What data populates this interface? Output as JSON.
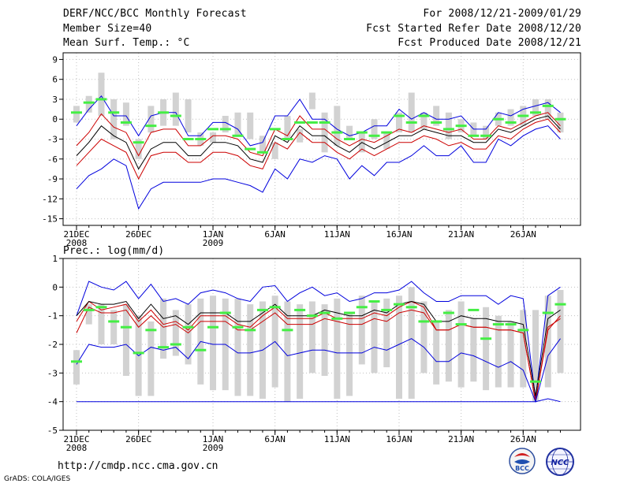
{
  "header": {
    "title": "DERF/NCC/BCC Monthly Forecast",
    "member_size": "Member Size=40",
    "variable": "Mean Surf. Temp.: °C",
    "period": "For 2008/12/21-2009/01/29",
    "fcst_started": "Fcst Started Refer Date 2008/12/20",
    "fcst_produced": "Fcst Produced Date 2008/12/21"
  },
  "footer": {
    "url": "http://cmdp.ncc.cma.gov.cn",
    "grads": "GrADS: COLA/IGES",
    "logo_bcc": "BCC",
    "logo_ncc": "NCC"
  },
  "colors": {
    "frame": "#000000",
    "grid": "#c0c0c0",
    "box": "#d2d2d2",
    "obs": "#44ee44",
    "outer": "#0000dd",
    "inner": "#cc0000",
    "mean": "#000000"
  },
  "chart_data": [
    {
      "type": "line",
      "name": "temperature",
      "title": "",
      "ylabel": "Mean Surf. Temp.: °C",
      "ylim": [
        -16,
        10
      ],
      "yticks": [
        9,
        6,
        3,
        0,
        -3,
        -6,
        -9,
        -12,
        -15
      ],
      "ytick_labels": [
        "9",
        "6",
        "3",
        "0",
        "-3",
        "-6",
        "-9",
        "-12",
        "-15"
      ],
      "xticks": [
        {
          "day": 1,
          "label": "21DEC",
          "sub": "2008"
        },
        {
          "day": 6,
          "label": "26DEC",
          "sub": ""
        },
        {
          "day": 12,
          "label": "1JAN",
          "sub": "2009"
        },
        {
          "day": 17,
          "label": "6JAN",
          "sub": ""
        },
        {
          "day": 22,
          "label": "11JAN",
          "sub": ""
        },
        {
          "day": 27,
          "label": "16JAN",
          "sub": ""
        },
        {
          "day": 32,
          "label": "21JAN",
          "sub": ""
        },
        {
          "day": 37,
          "label": "26JAN",
          "sub": ""
        }
      ],
      "x": [
        1,
        2,
        3,
        4,
        5,
        6,
        7,
        8,
        9,
        10,
        11,
        12,
        13,
        14,
        15,
        16,
        17,
        18,
        19,
        20,
        21,
        22,
        23,
        24,
        25,
        26,
        27,
        28,
        29,
        30,
        31,
        32,
        33,
        34,
        35,
        36,
        37,
        38,
        39,
        40
      ],
      "series": [
        {
          "name": "max",
          "role": "outer",
          "values": [
            -1,
            1.5,
            3.5,
            0.5,
            0.5,
            -2.5,
            0.5,
            1,
            1,
            -2.5,
            -2.5,
            -0.5,
            -0.5,
            -1.5,
            -4,
            -3.5,
            0.5,
            0.5,
            3,
            0,
            0,
            -1.5,
            -2.5,
            -2,
            -1,
            -1,
            1.5,
            0,
            1,
            0,
            0,
            0.5,
            -1.5,
            -1.5,
            1,
            0.5,
            1.5,
            2,
            2.5,
            1
          ]
        },
        {
          "name": "upper",
          "role": "inner",
          "values": [
            -4,
            -2,
            0.8,
            -1.2,
            -2,
            -5.5,
            -2,
            -1.5,
            -1.5,
            -4,
            -4,
            -2.5,
            -2.5,
            -3,
            -5,
            -5.5,
            -1.5,
            -2.5,
            0.5,
            -1.5,
            -1.5,
            -3,
            -4,
            -3,
            -3.5,
            -2.5,
            -1.5,
            -2,
            -1,
            -1.5,
            -2,
            -1.5,
            -3,
            -3,
            -1,
            -1.5,
            -0.5,
            0.5,
            1,
            -1
          ]
        },
        {
          "name": "mean",
          "role": "mean",
          "values": [
            -5.5,
            -3.5,
            -1,
            -2.5,
            -3.5,
            -7.5,
            -4.5,
            -3.5,
            -3.5,
            -5.5,
            -5.5,
            -3.5,
            -3.5,
            -4,
            -6,
            -6.5,
            -2.5,
            -3.5,
            -1,
            -2.5,
            -2.5,
            -4,
            -5,
            -3.5,
            -4.5,
            -3.5,
            -2.5,
            -2.5,
            -1.5,
            -2,
            -2.5,
            -2.5,
            -3.5,
            -3.5,
            -1.5,
            -2,
            -1,
            0,
            0.5,
            -1.5
          ]
        },
        {
          "name": "lower",
          "role": "inner",
          "values": [
            -7,
            -5,
            -3,
            -4,
            -5,
            -9,
            -5.5,
            -5,
            -5,
            -6.5,
            -6.5,
            -5,
            -5,
            -5.5,
            -7,
            -7.5,
            -3.5,
            -4.5,
            -2,
            -3.5,
            -3.5,
            -5,
            -6,
            -4.5,
            -5.5,
            -4.5,
            -3.5,
            -3.5,
            -2.5,
            -3,
            -4,
            -3.5,
            -4.5,
            -4.5,
            -2.5,
            -3,
            -1.5,
            -0.5,
            0,
            -2
          ]
        },
        {
          "name": "min",
          "role": "outer",
          "values": [
            -10.5,
            -8.5,
            -7.5,
            -6,
            -7,
            -13.5,
            -10.5,
            -9.5,
            -9.5,
            -9.5,
            -9.5,
            -9,
            -9,
            -9.5,
            -10,
            -11,
            -7.5,
            -9,
            -6,
            -6.5,
            -5.5,
            -6,
            -9,
            -7,
            -8.5,
            -6.5,
            -6.5,
            -5.5,
            -4,
            -5.5,
            -5.5,
            -4,
            -6.5,
            -6.5,
            -3,
            -4,
            -2.5,
            -1.5,
            -1,
            -3
          ]
        }
      ],
      "boxes": [
        [
          -0.5,
          2
        ],
        [
          1,
          3.5
        ],
        [
          0.5,
          7
        ],
        [
          -3,
          3
        ],
        [
          -1,
          2.5
        ],
        [
          -6,
          -3
        ],
        [
          -2,
          2
        ],
        [
          -1,
          3
        ],
        [
          -1,
          4
        ],
        [
          -2,
          3
        ],
        [
          -4,
          -2
        ],
        [
          -3.5,
          -2
        ],
        [
          -2,
          0.5
        ],
        [
          -2.5,
          1
        ],
        [
          -3,
          1
        ],
        [
          -5,
          -2.5
        ],
        [
          -6,
          -3.5
        ],
        [
          -3,
          0.5
        ],
        [
          -3.5,
          -1.5
        ],
        [
          1.5,
          4
        ],
        [
          -5,
          1
        ],
        [
          -4,
          2
        ],
        [
          -3,
          -1
        ],
        [
          -5,
          -2
        ],
        [
          -3,
          0
        ],
        [
          -4.5,
          -2
        ],
        [
          -2,
          1
        ],
        [
          -2,
          4
        ],
        [
          -1.5,
          1
        ],
        [
          -1,
          2
        ],
        [
          -3,
          1
        ],
        [
          -2,
          0
        ],
        [
          -2.5,
          -0.5
        ],
        [
          -3,
          -1
        ],
        [
          -1,
          1
        ],
        [
          -1,
          1.5
        ],
        [
          -1,
          2
        ],
        [
          0.5,
          3
        ],
        [
          0,
          3
        ],
        [
          -2,
          1
        ]
      ],
      "obs": [
        1,
        2.5,
        3,
        1,
        -0.5,
        -3.5,
        -1,
        1,
        0.5,
        -3,
        -3,
        -1.5,
        -1.5,
        -2.5,
        -4.5,
        -5,
        -1.5,
        -3,
        -0.5,
        -0.5,
        -0.5,
        -2,
        -3,
        -2,
        -2.5,
        -2,
        0.5,
        -0.5,
        0.5,
        -0.5,
        -1.5,
        -1,
        -2.5,
        -2.5,
        0,
        -0.5,
        0.5,
        1,
        2,
        0
      ]
    },
    {
      "type": "line",
      "name": "precipitation",
      "title": "",
      "ylabel": "Prec.: log(mm/d)",
      "ylim": [
        -5,
        1
      ],
      "yticks": [
        1,
        0,
        -1,
        -2,
        -3,
        -4,
        -5
      ],
      "ytick_labels": [
        "1",
        "0",
        "-1",
        "-2",
        "-3",
        "-4",
        "-5"
      ],
      "xticks": [
        {
          "day": 1,
          "label": "21DEC",
          "sub": "2008"
        },
        {
          "day": 6,
          "label": "26DEC",
          "sub": ""
        },
        {
          "day": 12,
          "label": "1JAN",
          "sub": "2009"
        },
        {
          "day": 17,
          "label": "6JAN",
          "sub": ""
        },
        {
          "day": 22,
          "label": "11JAN",
          "sub": ""
        },
        {
          "day": 27,
          "label": "16JAN",
          "sub": ""
        },
        {
          "day": 32,
          "label": "21JAN",
          "sub": ""
        },
        {
          "day": 37,
          "label": "26JAN",
          "sub": ""
        }
      ],
      "x": [
        1,
        2,
        3,
        4,
        5,
        6,
        7,
        8,
        9,
        10,
        11,
        12,
        13,
        14,
        15,
        16,
        17,
        18,
        19,
        20,
        21,
        22,
        23,
        24,
        25,
        26,
        27,
        28,
        29,
        30,
        31,
        32,
        33,
        34,
        35,
        36,
        37,
        38,
        39,
        40
      ],
      "series": [
        {
          "name": "max",
          "role": "outer",
          "values": [
            -1,
            0.2,
            0,
            -0.1,
            0.2,
            -0.4,
            0.1,
            -0.5,
            -0.4,
            -0.6,
            -0.2,
            -0.1,
            -0.2,
            -0.4,
            -0.5,
            0,
            0.05,
            -0.5,
            -0.2,
            0,
            -0.3,
            -0.2,
            -0.5,
            -0.4,
            -0.2,
            -0.2,
            -0.1,
            0.2,
            -0.2,
            -0.5,
            -0.5,
            -0.3,
            -0.3,
            -0.3,
            -0.6,
            -0.3,
            -0.4,
            -3.9,
            -0.3,
            0
          ]
        },
        {
          "name": "upper",
          "role": "inner",
          "values": [
            -1.2,
            -0.5,
            -0.8,
            -0.7,
            -0.6,
            -1.2,
            -0.8,
            -1.3,
            -1.2,
            -1.5,
            -1,
            -1,
            -1,
            -1.3,
            -1.4,
            -1,
            -0.7,
            -1.1,
            -1.1,
            -1.1,
            -0.9,
            -1.1,
            -1.1,
            -1.1,
            -0.9,
            -1,
            -0.7,
            -0.5,
            -0.7,
            -1.5,
            -1.5,
            -1.3,
            -1.4,
            -1.4,
            -1.5,
            -1.5,
            -1.6,
            -4,
            -1.5,
            -1
          ]
        },
        {
          "name": "mean",
          "role": "mean",
          "values": [
            -1,
            -0.5,
            -0.6,
            -0.6,
            -0.5,
            -1.1,
            -0.6,
            -1.1,
            -1,
            -1.3,
            -0.9,
            -0.9,
            -0.9,
            -1.2,
            -1.2,
            -0.9,
            -0.6,
            -1,
            -1,
            -1,
            -0.8,
            -0.9,
            -1,
            -1,
            -0.8,
            -0.9,
            -0.6,
            -0.5,
            -0.6,
            -1.2,
            -1.2,
            -1,
            -1.1,
            -1.1,
            -1.2,
            -1.2,
            -1.3,
            -3.8,
            -1.1,
            -0.8
          ]
        },
        {
          "name": "lower",
          "role": "inner",
          "values": [
            -1.6,
            -0.7,
            -0.9,
            -0.9,
            -0.8,
            -1.4,
            -1,
            -1.4,
            -1.3,
            -1.6,
            -1.2,
            -1.2,
            -1.2,
            -1.5,
            -1.5,
            -1.2,
            -0.9,
            -1.3,
            -1.3,
            -1.3,
            -1.1,
            -1.2,
            -1.3,
            -1.3,
            -1.1,
            -1.2,
            -0.9,
            -0.8,
            -0.9,
            -1.5,
            -1.5,
            -1.3,
            -1.4,
            -1.4,
            -1.5,
            -1.5,
            -1.6,
            -4,
            -1.4,
            -1.1
          ]
        },
        {
          "name": "min",
          "role": "outer",
          "values": [
            -2.7,
            -2,
            -2.1,
            -2.1,
            -2,
            -2.4,
            -2.1,
            -2.2,
            -2.1,
            -2.5,
            -1.9,
            -2,
            -2,
            -2.3,
            -2.3,
            -2.2,
            -1.9,
            -2.4,
            -2.3,
            -2.2,
            -2.2,
            -2.3,
            -2.3,
            -2.3,
            -2.1,
            -2.2,
            -2,
            -1.8,
            -2.1,
            -2.6,
            -2.6,
            -2.3,
            -2.4,
            -2.6,
            -2.8,
            -2.6,
            -2.9,
            -4,
            -2.4,
            -1.8
          ]
        },
        {
          "name": "floor",
          "role": "outer",
          "values": [
            -4,
            -4,
            -4,
            -4,
            -4,
            -4,
            -4,
            -4,
            -4,
            -4,
            -4,
            -4,
            -4,
            -4,
            -4,
            -4,
            -4,
            -4,
            -4,
            -4,
            -4,
            -4,
            -4,
            -4,
            -4,
            -4,
            -4,
            -4,
            -4,
            -4,
            -4,
            -4,
            -4,
            -4,
            -4,
            -4,
            -4,
            -4,
            -3.9,
            -4
          ]
        }
      ],
      "boxes": [
        [
          -3.4,
          -2.2
        ],
        [
          -1.3,
          -0.6
        ],
        [
          -2,
          -0.6
        ],
        [
          -2,
          -0.8
        ],
        [
          -3.1,
          -0.6
        ],
        [
          -3.8,
          -1
        ],
        [
          -3.8,
          -1.2
        ],
        [
          -2.5,
          -0.4
        ],
        [
          -2.4,
          -0.8
        ],
        [
          -2.7,
          -0.6
        ],
        [
          -3.4,
          -0.4
        ],
        [
          -3.6,
          -0.3
        ],
        [
          -3.6,
          -0.4
        ],
        [
          -3.8,
          -0.4
        ],
        [
          -3.8,
          -0.6
        ],
        [
          -3.9,
          -0.5
        ],
        [
          -3.5,
          -0.3
        ],
        [
          -4,
          -0.5
        ],
        [
          -3.9,
          -0.6
        ],
        [
          -3,
          -0.5
        ],
        [
          -3.1,
          -0.6
        ],
        [
          -3.9,
          -0.4
        ],
        [
          -3.8,
          -0.9
        ],
        [
          -2.7,
          -0.3
        ],
        [
          -3,
          -0.5
        ],
        [
          -2.8,
          -0.4
        ],
        [
          -3.9,
          -0.3
        ],
        [
          -3.9,
          0
        ],
        [
          -3,
          -0.5
        ],
        [
          -3.4,
          -1.2
        ],
        [
          -3.3,
          -0.8
        ],
        [
          -3.5,
          -0.5
        ],
        [
          -3.3,
          -1.1
        ],
        [
          -3.6,
          -0.7
        ],
        [
          -3.5,
          -1
        ],
        [
          -3.5,
          -1.2
        ],
        [
          -3.5,
          -0.8
        ],
        [
          -4,
          -0.8
        ],
        [
          -3.5,
          -0.3
        ],
        [
          -3,
          -0.1
        ]
      ],
      "obs": [
        -2.6,
        -0.8,
        -0.7,
        -1.2,
        -1.4,
        -2.3,
        -1.5,
        -2.1,
        -2,
        -1.4,
        -2.2,
        -1.4,
        -0.9,
        -1.4,
        -1.5,
        -0.8,
        -0.7,
        -1.5,
        -0.8,
        -1,
        -0.9,
        -1.1,
        -0.9,
        -0.7,
        -0.5,
        -0.8,
        -0.6,
        -0.7,
        -1.2,
        -1.2,
        -0.9,
        -1.3,
        -0.8,
        -1.8,
        -1.3,
        -1.3,
        -1.5,
        -3.3,
        -0.9,
        -0.6
      ]
    }
  ]
}
